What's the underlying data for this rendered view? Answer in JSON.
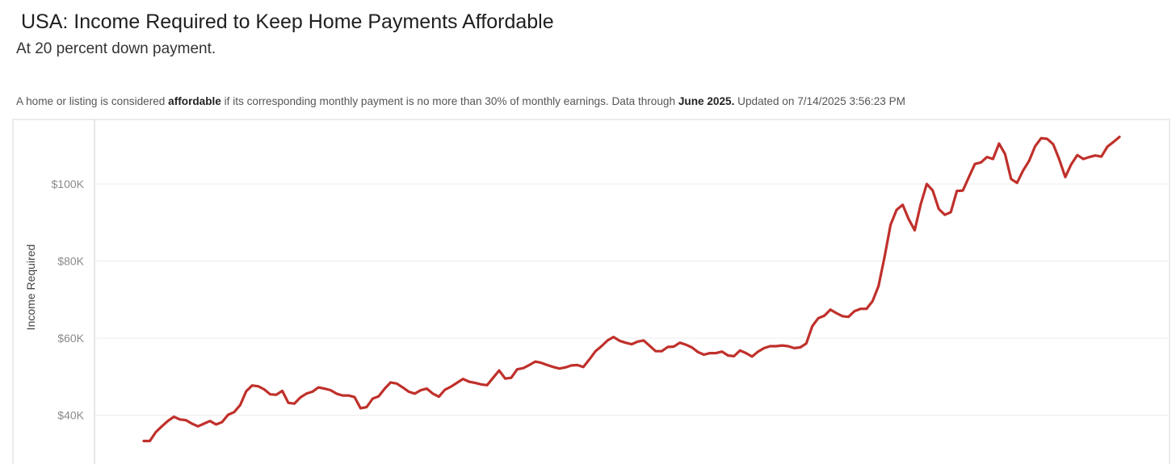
{
  "header": {
    "title": "USA: Income Required to Keep Home Payments Affordable",
    "subtitle": "At 20 percent down payment."
  },
  "note": {
    "prefix": "A home or listing is considered ",
    "bold_term": "affordable",
    "middle": " if its corresponding monthly payment is no more than 30% of monthly earnings. Data through ",
    "bold_date": "June 2025.",
    "suffix": " Updated on 7/14/2025 3:56:23 PM"
  },
  "colors": {
    "line": "#c0302b",
    "grid": "#ececec",
    "axis": "#cfcfcf"
  },
  "chart_data": {
    "type": "line",
    "ylabel": "Income Required",
    "ylim": [
      30000,
      120000
    ],
    "y_ticks": [
      40000,
      60000,
      80000,
      100000
    ],
    "y_tick_labels": [
      "$40K",
      "$60K",
      "$80K",
      "$100K"
    ],
    "grid": true,
    "series": [
      {
        "values": [
          33300,
          33300,
          35600,
          37100,
          38500,
          39600,
          38900,
          38700,
          37800,
          37100,
          37800,
          38500,
          37600,
          38200,
          40100,
          40800,
          42600,
          46200,
          47700,
          47500,
          46700,
          45400,
          45300,
          46300,
          43200,
          43000,
          44600,
          45600,
          46100,
          47200,
          46900,
          46500,
          45600,
          45100,
          45100,
          44700,
          41800,
          42100,
          44300,
          44900,
          46900,
          48500,
          48200,
          47200,
          46100,
          45600,
          46500,
          46900,
          45600,
          44800,
          46600,
          47400,
          48400,
          49400,
          48700,
          48400,
          48000,
          47800,
          49700,
          51600,
          49500,
          49700,
          51900,
          52200,
          53000,
          53900,
          53600,
          53000,
          52500,
          52100,
          52400,
          52900,
          53000,
          52500,
          54500,
          56600,
          57900,
          59400,
          60300,
          59300,
          58800,
          58400,
          59100,
          59400,
          58000,
          56600,
          56600,
          57700,
          57800,
          58800,
          58300,
          57600,
          56400,
          55700,
          56100,
          56100,
          56500,
          55500,
          55300,
          56800,
          56100,
          55200,
          56500,
          57400,
          57900,
          57900,
          58100,
          57900,
          57400,
          57600,
          58600,
          63100,
          65200,
          65800,
          67400,
          66500,
          65700,
          65500,
          67000,
          67600,
          67600,
          69600,
          73500,
          81100,
          89400,
          93300,
          94600,
          90900,
          88000,
          94700,
          100000,
          98300,
          93500,
          92000,
          92700,
          98200,
          98300,
          101800,
          105200,
          105600,
          107000,
          106500,
          110500,
          107800,
          101300,
          100300,
          103500,
          106000,
          109800,
          111900,
          111700,
          110300,
          106400,
          101800,
          105100,
          107500,
          106500,
          107000,
          107400,
          107100,
          109700,
          110900,
          112200
        ]
      }
    ]
  }
}
